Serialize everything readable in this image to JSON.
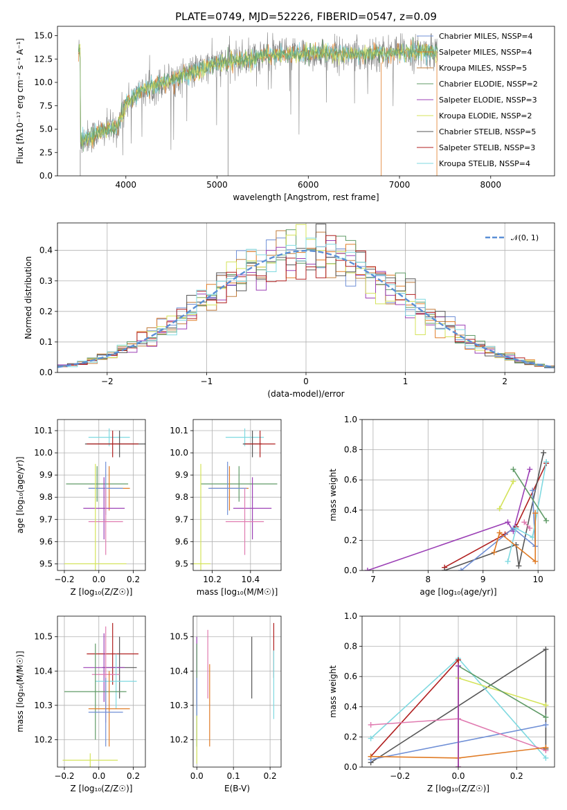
{
  "figure": {
    "colors": [
      "#6f8fd6",
      "#e07b25",
      "#c07b3a",
      "#5f9a66",
      "#9b3fb5",
      "#d4e35a",
      "#555555",
      "#b01f1f",
      "#7fd9e0",
      "#e07bb0",
      "#999999"
    ],
    "spectrum_colors": [
      "#808080",
      "#e07b25",
      "#7fd9e0",
      "#d4e35a",
      "#5f9a66"
    ]
  },
  "chart_data": [
    {
      "id": "spectrum",
      "type": "line",
      "title": "PLATE=0749, MJD=52226, FIBERID=0547, z=0.09",
      "xlabel": "wavelength [Angstrom, rest frame]",
      "ylabel": "Flux [fλ10⁻¹⁷ erg cm⁻² s⁻¹ A⁻¹]",
      "xlim": [
        3250,
        8700
      ],
      "ylim": [
        0,
        16
      ],
      "xticks": [
        4000,
        5000,
        6000,
        7000,
        8000
      ],
      "yticks": [
        0.0,
        2.5,
        5.0,
        7.5,
        10.0,
        12.5,
        15.0
      ],
      "grid": false,
      "legend_position": "top-right",
      "legend": [
        {
          "label": "Chabrier MILES, NSSP=4",
          "color": "#6f8fd6"
        },
        {
          "label": "Salpeter MILES, NSSP=4",
          "color": "#e07b25"
        },
        {
          "label": "Kroupa MILES, NSSP=5",
          "color": "#c07b3a"
        },
        {
          "label": "Chabrier ELODIE, NSSP=2",
          "color": "#5f9a66"
        },
        {
          "label": "Salpeter ELODIE, NSSP=3",
          "color": "#9b3fb5"
        },
        {
          "label": "Kroupa ELODIE, NSSP=2",
          "color": "#d4e35a"
        },
        {
          "label": "Chabrier STELIB, NSSP=5",
          "color": "#555555"
        },
        {
          "label": "Salpeter STELIB, NSSP=3",
          "color": "#b01f1f"
        },
        {
          "label": "Kroupa STELIB, NSSP=4",
          "color": "#7fd9e0"
        }
      ],
      "continuum": {
        "x": [
          3500,
          3700,
          3900,
          4000,
          4200,
          4500,
          5000,
          5500,
          6000,
          6500,
          7000,
          7400
        ],
        "y": [
          3.8,
          4.6,
          5.2,
          7.8,
          9.3,
          10.3,
          12.0,
          12.8,
          13.1,
          13.0,
          13.2,
          13.3
        ]
      }
    },
    {
      "id": "residuals",
      "type": "step",
      "xlabel": "(data-model)/error",
      "ylabel": "Normed distribution",
      "xlim": [
        -2.5,
        2.5
      ],
      "ylim": [
        0,
        0.49
      ],
      "xticks": [
        -2,
        -1,
        0,
        1,
        2
      ],
      "yticks": [
        0.0,
        0.1,
        0.2,
        0.3,
        0.4
      ],
      "grid": true,
      "legend": [
        {
          "label": "𝒩(0, 1)",
          "color": "#5b8fd6"
        }
      ],
      "legend_position": "top-right",
      "bin_width": 0.1
    },
    {
      "id": "z-age",
      "type": "errorbar",
      "xlabel": "Z [log₁₀(Z/Z☉)]",
      "ylabel": "age  [log₁₀(age/yr)]",
      "xlim": [
        -0.24,
        0.27
      ],
      "ylim": [
        9.47,
        10.15
      ],
      "xticks": [
        -0.2,
        0.0,
        0.2
      ],
      "yticks": [
        9.5,
        9.6,
        9.7,
        9.8,
        9.9,
        10.0,
        10.1
      ],
      "grid": true,
      "points": [
        {
          "x": 0.06,
          "y": 10.07,
          "xerr": 0.12,
          "yerr": 0.04,
          "color": "#7fd9e0"
        },
        {
          "x": 0.12,
          "y": 10.04,
          "xerr": 0.2,
          "yerr": 0.06,
          "color": "#555555"
        },
        {
          "x": 0.08,
          "y": 10.04,
          "xerr": 0.15,
          "yerr": 0.06,
          "color": "#b01f1f"
        },
        {
          "x": -0.01,
          "y": 9.86,
          "xerr": 0.18,
          "yerr": 0.08,
          "color": "#5f9a66"
        },
        {
          "x": 0.06,
          "y": 9.84,
          "xerr": 0.12,
          "yerr": 0.1,
          "color": "#e07b25"
        },
        {
          "x": 0.04,
          "y": 9.84,
          "xerr": 0.1,
          "yerr": 0.12,
          "color": "#6f8fd6"
        },
        {
          "x": 0.03,
          "y": 9.75,
          "xerr": 0.12,
          "yerr": 0.14,
          "color": "#9b3fb5"
        },
        {
          "x": 0.04,
          "y": 9.69,
          "xerr": 0.1,
          "yerr": 0.15,
          "color": "#e07bb0"
        },
        {
          "x": -0.02,
          "y": 9.5,
          "xerr": 0.18,
          "yerr": 0.45,
          "color": "#d4e35a"
        }
      ]
    },
    {
      "id": "mass-age",
      "type": "errorbar",
      "xlabel": "mass [log₁₀(M/M☉)]",
      "ylabel": "",
      "xlim": [
        10.1,
        10.56
      ],
      "ylim": [
        9.47,
        10.15
      ],
      "xticks": [
        10.2,
        10.4
      ],
      "yticks": [
        9.5,
        9.6,
        9.7,
        9.8,
        9.9,
        10.0,
        10.1
      ],
      "grid": true,
      "points": [
        {
          "x": 10.37,
          "y": 10.07,
          "xerr": 0.1,
          "yerr": 0.04,
          "color": "#7fd9e0"
        },
        {
          "x": 10.41,
          "y": 10.04,
          "xerr": 0.05,
          "yerr": 0.06,
          "color": "#555555"
        },
        {
          "x": 10.45,
          "y": 10.04,
          "xerr": 0.08,
          "yerr": 0.06,
          "color": "#b01f1f"
        },
        {
          "x": 10.34,
          "y": 9.86,
          "xerr": 0.2,
          "yerr": 0.08,
          "color": "#5f9a66"
        },
        {
          "x": 10.29,
          "y": 9.84,
          "xerr": 0.1,
          "yerr": 0.1,
          "color": "#e07b25"
        },
        {
          "x": 10.28,
          "y": 9.84,
          "xerr": 0.1,
          "yerr": 0.12,
          "color": "#6f8fd6"
        },
        {
          "x": 10.41,
          "y": 9.75,
          "xerr": 0.1,
          "yerr": 0.14,
          "color": "#9b3fb5"
        },
        {
          "x": 10.37,
          "y": 9.69,
          "xerr": 0.1,
          "yerr": 0.15,
          "color": "#e07bb0"
        },
        {
          "x": 10.14,
          "y": 9.5,
          "xerr": 0.05,
          "yerr": 0.45,
          "color": "#d4e35a"
        }
      ]
    },
    {
      "id": "age-weight",
      "type": "line",
      "xlabel": "age  [log₁₀(age/yr)]",
      "ylabel": "mass weight",
      "xlim": [
        6.8,
        10.3
      ],
      "ylim": [
        0,
        1
      ],
      "xticks": [
        7,
        8,
        9,
        10
      ],
      "yticks": [
        0.0,
        0.2,
        0.4,
        0.6,
        0.8,
        1.0
      ],
      "grid": true,
      "series": [
        {
          "color": "#9b3fb5",
          "x": [
            6.9,
            9.45,
            9.55,
            9.85
          ],
          "y": [
            0.0,
            0.32,
            0.26,
            0.67
          ]
        },
        {
          "color": "#b01f1f",
          "x": [
            8.3,
            9.4,
            9.6,
            10.15
          ],
          "y": [
            0.02,
            0.24,
            0.29,
            0.71
          ]
        },
        {
          "color": "#555555",
          "x": [
            8.3,
            9.6,
            9.65,
            10.1
          ],
          "y": [
            0.0,
            0.17,
            0.03,
            0.78
          ]
        },
        {
          "color": "#6f8fd6",
          "x": [
            8.6,
            9.55,
            9.95,
            9.9
          ],
          "y": [
            0.0,
            0.28,
            0.16,
            0.53
          ]
        },
        {
          "color": "#7fd9e0",
          "x": [
            9.45,
            9.6,
            9.9,
            10.15
          ],
          "y": [
            0.06,
            0.28,
            0.22,
            0.72
          ]
        },
        {
          "color": "#e07b25",
          "x": [
            9.2,
            9.3,
            9.95,
            9.95
          ],
          "y": [
            0.12,
            0.25,
            0.06,
            0.38
          ]
        },
        {
          "color": "#e07bb0",
          "x": [
            9.75,
            9.85
          ],
          "y": [
            0.32,
            0.28
          ]
        },
        {
          "color": "#d4e35a",
          "x": [
            9.3,
            9.55
          ],
          "y": [
            0.41,
            0.59
          ]
        },
        {
          "color": "#5f9a66",
          "x": [
            9.55,
            10.15
          ],
          "y": [
            0.67,
            0.33
          ]
        }
      ]
    },
    {
      "id": "z-mass",
      "type": "errorbar",
      "xlabel": "Z [log₁₀(Z/Z☉)]",
      "ylabel": "mass [log₁₀(M/M☉)]",
      "xlim": [
        -0.24,
        0.27
      ],
      "ylim": [
        10.12,
        10.56
      ],
      "xticks": [
        -0.2,
        0.0,
        0.2
      ],
      "yticks": [
        10.2,
        10.3,
        10.4,
        10.5
      ],
      "grid": true,
      "points": [
        {
          "x": 0.08,
          "y": 10.45,
          "xerr": 0.15,
          "yerr": 0.09,
          "color": "#b01f1f"
        },
        {
          "x": 0.12,
          "y": 10.41,
          "xerr": 0.1,
          "yerr": 0.09,
          "color": "#555555"
        },
        {
          "x": 0.03,
          "y": 10.41,
          "xerr": 0.12,
          "yerr": 0.1,
          "color": "#9b3fb5"
        },
        {
          "x": 0.04,
          "y": 10.39,
          "xerr": 0.08,
          "yerr": 0.14,
          "color": "#e07bb0"
        },
        {
          "x": 0.1,
          "y": 10.37,
          "xerr": 0.12,
          "yerr": 0.08,
          "color": "#7fd9e0"
        },
        {
          "x": -0.02,
          "y": 10.34,
          "xerr": 0.18,
          "yerr": 0.14,
          "color": "#5f9a66"
        },
        {
          "x": 0.06,
          "y": 10.29,
          "xerr": 0.12,
          "yerr": 0.11,
          "color": "#e07b25"
        },
        {
          "x": 0.04,
          "y": 10.28,
          "xerr": 0.1,
          "yerr": 0.1,
          "color": "#6f8fd6"
        },
        {
          "x": -0.05,
          "y": 10.14,
          "xerr": 0.16,
          "yerr": 0.02,
          "color": "#d4e35a"
        }
      ]
    },
    {
      "id": "ebv-mass",
      "type": "errorbar",
      "xlabel": "E(B-V)",
      "ylabel": "",
      "xlim": [
        -0.01,
        0.23
      ],
      "ylim": [
        10.12,
        10.56
      ],
      "xticks": [
        0.0,
        0.1,
        0.2
      ],
      "yticks": [
        10.2,
        10.3,
        10.4,
        10.5
      ],
      "grid": true,
      "points": [
        {
          "x": 0.21,
          "y": 10.46,
          "xerr": 0,
          "yerr": 0.08,
          "color": "#b01f1f"
        },
        {
          "x": 0.15,
          "y": 10.41,
          "xerr": 0,
          "yerr": 0.09,
          "color": "#555555"
        },
        {
          "x": 0.0,
          "y": 10.4,
          "xerr": 0,
          "yerr": 0.1,
          "color": "#9b3fb5"
        },
        {
          "x": 0.03,
          "y": 10.42,
          "xerr": 0,
          "yerr": 0.1,
          "color": "#e07bb0"
        },
        {
          "x": 0.21,
          "y": 10.36,
          "xerr": 0,
          "yerr": 0.1,
          "color": "#7fd9e0"
        },
        {
          "x": 0.0,
          "y": 10.33,
          "xerr": 0,
          "yerr": 0.15,
          "color": "#5f9a66"
        },
        {
          "x": 0.035,
          "y": 10.3,
          "xerr": 0,
          "yerr": 0.12,
          "color": "#e07b25"
        },
        {
          "x": 0.0,
          "y": 10.28,
          "xerr": 0,
          "yerr": 0.1,
          "color": "#6f8fd6"
        },
        {
          "x": 0.0,
          "y": 10.2,
          "xerr": 0,
          "yerr": 0.07,
          "color": "#d4e35a"
        }
      ]
    },
    {
      "id": "z-weight",
      "type": "line",
      "xlabel": "Z [log₁₀(Z/Z☉)]",
      "ylabel": "mass weight",
      "xlim": [
        -0.33,
        0.33
      ],
      "ylim": [
        0,
        1
      ],
      "xticks": [
        -0.2,
        0.0,
        0.2
      ],
      "yticks": [
        0.0,
        0.2,
        0.4,
        0.6,
        0.8,
        1.0
      ],
      "grid": true,
      "series": [
        {
          "color": "#555555",
          "x": [
            -0.3,
            0.3,
            0.3
          ],
          "y": [
            0.03,
            0.78,
            0.12
          ]
        },
        {
          "color": "#7fd9e0",
          "x": [
            -0.3,
            0.0,
            0.3
          ],
          "y": [
            0.19,
            0.72,
            0.06
          ]
        },
        {
          "color": "#b01f1f",
          "x": [
            -0.3,
            0.0,
            0.0
          ],
          "y": [
            0.07,
            0.71,
            0.0
          ]
        },
        {
          "color": "#6f8fd6",
          "x": [
            -0.3,
            0.3
          ],
          "y": [
            0.05,
            0.28
          ]
        },
        {
          "color": "#e07bb0",
          "x": [
            -0.3,
            0.0,
            0.3
          ],
          "y": [
            0.28,
            0.32,
            0.11
          ]
        },
        {
          "color": "#d4e35a",
          "x": [
            0.0,
            0.3
          ],
          "y": [
            0.59,
            0.41
          ]
        },
        {
          "color": "#5f9a66",
          "x": [
            0.0,
            0.3
          ],
          "y": [
            0.67,
            0.33
          ]
        },
        {
          "color": "#e07b25",
          "x": [
            -0.3,
            0.0,
            0.3
          ],
          "y": [
            0.07,
            0.06,
            0.13
          ]
        },
        {
          "color": "#9b3fb5",
          "x": [
            0.0,
            0.0
          ],
          "y": [
            0.0,
            0.67
          ]
        }
      ]
    }
  ]
}
